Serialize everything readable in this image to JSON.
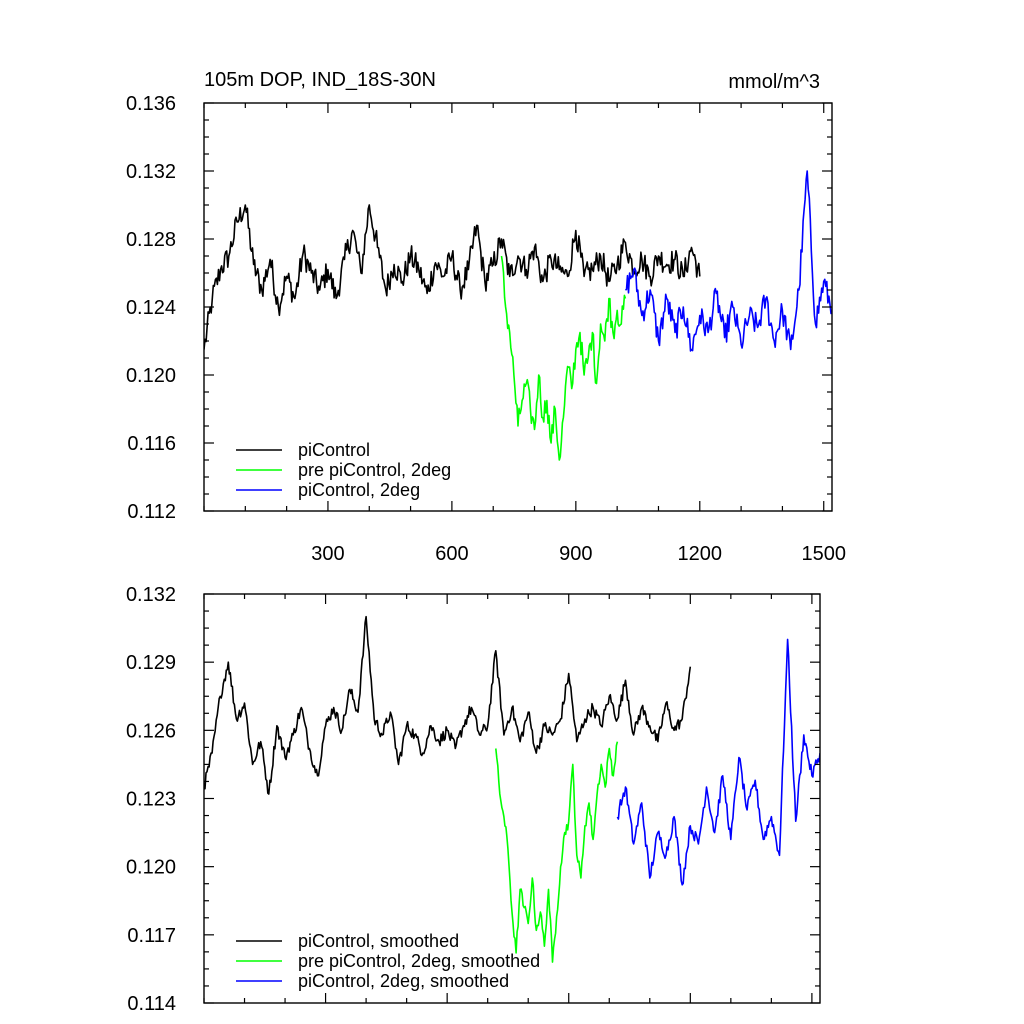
{
  "chart_data": [
    {
      "type": "line",
      "title": "105m DOP, IND_18S-30N",
      "units": "mmol/m^3",
      "xlim": [
        0,
        1520
      ],
      "ylim": [
        0.112,
        0.136
      ],
      "xticks": [
        300,
        600,
        900,
        1200,
        1500
      ],
      "xtick_labels": [
        "300",
        "600",
        "900",
        "1200",
        "1500"
      ],
      "yticks": [
        0.112,
        0.116,
        0.12,
        0.124,
        0.128,
        0.132,
        0.136
      ],
      "ytick_labels": [
        "0.112",
        "0.116",
        "0.120",
        "0.124",
        "0.128",
        "0.132",
        "0.136"
      ],
      "legend_position": "bottom-left",
      "grid": false,
      "series": [
        {
          "name": "piControl",
          "color": "#000000",
          "x": [
            0,
            20,
            40,
            60,
            80,
            100,
            120,
            140,
            160,
            180,
            200,
            220,
            240,
            260,
            280,
            300,
            320,
            340,
            360,
            380,
            400,
            420,
            440,
            460,
            480,
            500,
            520,
            540,
            560,
            580,
            600,
            620,
            640,
            660,
            680,
            700,
            720,
            740,
            760,
            780,
            800,
            820,
            840,
            860,
            880,
            900,
            920,
            940,
            960,
            980,
            1000,
            1020,
            1040,
            1060,
            1080,
            1100,
            1120,
            1140,
            1160,
            1180,
            1200
          ],
          "y": [
            0.1215,
            0.1245,
            0.1262,
            0.127,
            0.129,
            0.13,
            0.1265,
            0.125,
            0.1268,
            0.124,
            0.1258,
            0.1245,
            0.1272,
            0.126,
            0.125,
            0.1262,
            0.1245,
            0.1268,
            0.1285,
            0.126,
            0.13,
            0.1275,
            0.125,
            0.1265,
            0.1255,
            0.127,
            0.1262,
            0.1248,
            0.1266,
            0.1258,
            0.127,
            0.125,
            0.1262,
            0.1288,
            0.1255,
            0.1265,
            0.128,
            0.1258,
            0.127,
            0.1262,
            0.1275,
            0.1255,
            0.1268,
            0.1262,
            0.1258,
            0.1285,
            0.1258,
            0.1262,
            0.127,
            0.1255,
            0.1265,
            0.1278,
            0.1262,
            0.1268,
            0.1258,
            0.127,
            0.1265,
            0.1268,
            0.1258,
            0.1275,
            0.1258
          ]
        },
        {
          "name": "pre piControl, 2deg",
          "color": "#00ff00",
          "x": [
            720,
            730,
            740,
            750,
            760,
            770,
            780,
            790,
            800,
            810,
            820,
            830,
            840,
            850,
            860,
            870,
            880,
            890,
            900,
            910,
            920,
            930,
            940,
            950,
            960,
            970,
            980,
            990,
            1000,
            1010,
            1020
          ],
          "y": [
            0.127,
            0.124,
            0.1225,
            0.12,
            0.117,
            0.1185,
            0.1195,
            0.118,
            0.1168,
            0.12,
            0.1175,
            0.1185,
            0.116,
            0.118,
            0.115,
            0.1175,
            0.1205,
            0.1192,
            0.1215,
            0.1225,
            0.12,
            0.121,
            0.1225,
            0.1195,
            0.123,
            0.122,
            0.1245,
            0.1225,
            0.1238,
            0.123,
            0.1245
          ]
        },
        {
          "name": "piControl, 2deg",
          "color": "#0000ff",
          "x": [
            1020,
            1040,
            1060,
            1080,
            1100,
            1120,
            1140,
            1160,
            1180,
            1200,
            1220,
            1240,
            1260,
            1280,
            1300,
            1320,
            1340,
            1360,
            1380,
            1400,
            1420,
            1440,
            1460,
            1480,
            1500,
            1520
          ],
          "y": [
            0.125,
            0.1262,
            0.1235,
            0.125,
            0.122,
            0.1245,
            0.1225,
            0.124,
            0.1215,
            0.1235,
            0.1225,
            0.1248,
            0.1222,
            0.124,
            0.1218,
            0.1235,
            0.1228,
            0.1245,
            0.122,
            0.1238,
            0.1215,
            0.125,
            0.132,
            0.123,
            0.1255,
            0.1238
          ]
        }
      ]
    },
    {
      "type": "line",
      "xlim": [
        0,
        1520
      ],
      "ylim": [
        0.114,
        0.132
      ],
      "xticks": [
        300,
        600,
        900,
        1200,
        1500
      ],
      "yticks": [
        0.114,
        0.117,
        0.12,
        0.123,
        0.126,
        0.129,
        0.132
      ],
      "ytick_labels": [
        "0.114",
        "0.117",
        "0.120",
        "0.123",
        "0.126",
        "0.129",
        "0.132"
      ],
      "legend_position": "bottom-left",
      "grid": false,
      "series": [
        {
          "name": "piControl, smoothed",
          "color": "#000000",
          "x": [
            0,
            20,
            40,
            60,
            80,
            100,
            120,
            140,
            160,
            180,
            200,
            220,
            240,
            260,
            280,
            300,
            320,
            340,
            360,
            380,
            400,
            420,
            440,
            460,
            480,
            500,
            520,
            540,
            560,
            580,
            600,
            620,
            640,
            660,
            680,
            700,
            720,
            740,
            760,
            780,
            800,
            820,
            840,
            860,
            880,
            900,
            920,
            940,
            960,
            980,
            1000,
            1020,
            1040,
            1060,
            1080,
            1100,
            1120,
            1140,
            1160,
            1180,
            1200
          ],
          "y": [
            0.1235,
            0.125,
            0.1275,
            0.129,
            0.1265,
            0.1272,
            0.1245,
            0.1255,
            0.1232,
            0.1262,
            0.1248,
            0.1258,
            0.127,
            0.1252,
            0.124,
            0.1262,
            0.127,
            0.126,
            0.1278,
            0.1268,
            0.131,
            0.1265,
            0.1258,
            0.1268,
            0.1245,
            0.1262,
            0.1258,
            0.125,
            0.1262,
            0.1255,
            0.126,
            0.1252,
            0.1262,
            0.127,
            0.1258,
            0.1262,
            0.1295,
            0.1258,
            0.127,
            0.1255,
            0.1268,
            0.125,
            0.1262,
            0.1258,
            0.1265,
            0.1285,
            0.1255,
            0.1265,
            0.127,
            0.1262,
            0.1275,
            0.1265,
            0.1282,
            0.1258,
            0.127,
            0.1262,
            0.1255,
            0.1272,
            0.126,
            0.1265,
            0.1288
          ]
        },
        {
          "name": "pre piControl, 2deg, smoothed",
          "color": "#00ff00",
          "x": [
            720,
            730,
            740,
            750,
            760,
            770,
            780,
            790,
            800,
            810,
            820,
            830,
            840,
            850,
            860,
            870,
            880,
            890,
            900,
            910,
            920,
            930,
            940,
            950,
            960,
            970,
            980,
            990,
            1000,
            1010,
            1020
          ],
          "y": [
            0.1252,
            0.1232,
            0.1222,
            0.1208,
            0.118,
            0.1162,
            0.119,
            0.1182,
            0.1175,
            0.1195,
            0.1172,
            0.118,
            0.1165,
            0.119,
            0.1158,
            0.1178,
            0.12,
            0.1215,
            0.122,
            0.1245,
            0.1205,
            0.1195,
            0.1218,
            0.1228,
            0.1212,
            0.1232,
            0.1245,
            0.1235,
            0.1252,
            0.124,
            0.1255
          ]
        },
        {
          "name": "piControl, 2deg, smoothed",
          "color": "#0000ff",
          "x": [
            1020,
            1040,
            1060,
            1080,
            1100,
            1120,
            1140,
            1160,
            1180,
            1200,
            1220,
            1240,
            1260,
            1280,
            1300,
            1320,
            1340,
            1360,
            1380,
            1400,
            1420,
            1440,
            1460,
            1480,
            1500,
            1520
          ],
          "y": [
            0.1222,
            0.1235,
            0.121,
            0.1228,
            0.1195,
            0.1215,
            0.1205,
            0.1222,
            0.1192,
            0.1218,
            0.121,
            0.1235,
            0.1215,
            0.124,
            0.1212,
            0.1248,
            0.1225,
            0.1238,
            0.1212,
            0.1222,
            0.1205,
            0.13,
            0.122,
            0.1258,
            0.124,
            0.125
          ]
        }
      ]
    }
  ]
}
